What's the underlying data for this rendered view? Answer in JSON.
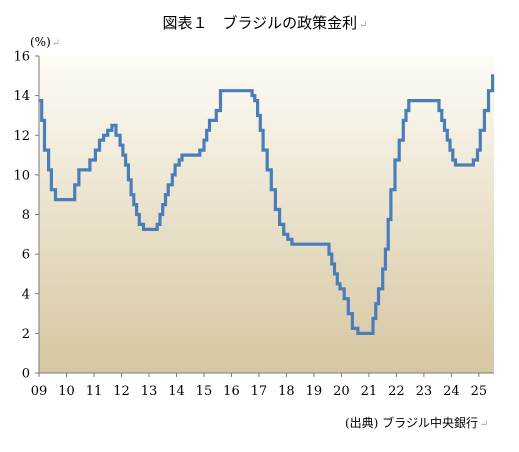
{
  "chart_data": {
    "type": "line",
    "title": "図表１　ブラジルの政策金利",
    "title_mark": "↵",
    "unit_label": "(%)",
    "unit_mark": "↵",
    "source": "(出典) ブラジル中央銀行",
    "source_mark": "↵",
    "xlabel": "",
    "ylabel": "",
    "xlim": [
      2009.0,
      2025.55
    ],
    "ylim": [
      0,
      16
    ],
    "y_ticks": [
      "0",
      "2",
      "4",
      "6",
      "8",
      "10",
      "12",
      "14",
      "16"
    ],
    "x_ticks": [
      "09",
      "10",
      "11",
      "12",
      "13",
      "14",
      "15",
      "16",
      "17",
      "18",
      "19",
      "20",
      "21",
      "22",
      "23",
      "24",
      "25"
    ],
    "x_tick_values": [
      2009,
      2010,
      2011,
      2012,
      2013,
      2014,
      2015,
      2016,
      2017,
      2018,
      2019,
      2020,
      2021,
      2022,
      2023,
      2024,
      2025
    ],
    "grid": false,
    "legend": "none",
    "line_color": "#4a7ebb",
    "background_gradient": [
      "#fdfcf6",
      "#d6c6a0"
    ],
    "series": [
      {
        "name": "",
        "x": [
          2009.0,
          2009.1,
          2009.2,
          2009.35,
          2009.45,
          2009.6,
          2010.3,
          2010.45,
          2010.85,
          2011.05,
          2011.2,
          2011.35,
          2011.5,
          2011.65,
          2011.8,
          2011.95,
          2012.05,
          2012.15,
          2012.25,
          2012.35,
          2012.45,
          2012.55,
          2012.65,
          2012.8,
          2013.3,
          2013.4,
          2013.5,
          2013.6,
          2013.7,
          2013.85,
          2013.95,
          2014.1,
          2014.2,
          2014.3,
          2014.85,
          2015.0,
          2015.1,
          2015.2,
          2015.45,
          2015.6,
          2016.75,
          2016.85,
          2016.95,
          2017.05,
          2017.15,
          2017.3,
          2017.45,
          2017.6,
          2017.75,
          2017.9,
          2018.05,
          2018.2,
          2019.55,
          2019.65,
          2019.75,
          2019.85,
          2019.95,
          2020.1,
          2020.25,
          2020.4,
          2020.6,
          2021.15,
          2021.25,
          2021.35,
          2021.5,
          2021.6,
          2021.7,
          2021.8,
          2021.95,
          2022.1,
          2022.25,
          2022.35,
          2022.45,
          2022.55,
          2022.65,
          2023.55,
          2023.65,
          2023.75,
          2023.85,
          2023.95,
          2024.05,
          2024.15,
          2024.3,
          2024.65,
          2024.8,
          2024.95,
          2025.05,
          2025.2,
          2025.35,
          2025.5
        ],
        "values": [
          13.75,
          12.75,
          11.25,
          10.25,
          9.25,
          8.75,
          9.5,
          10.25,
          10.75,
          11.25,
          11.75,
          12.0,
          12.25,
          12.5,
          12.0,
          11.5,
          11.0,
          10.5,
          9.75,
          9.0,
          8.5,
          8.0,
          7.5,
          7.25,
          7.5,
          8.0,
          8.5,
          9.0,
          9.5,
          10.0,
          10.5,
          10.75,
          11.0,
          11.0,
          11.25,
          11.75,
          12.25,
          12.75,
          13.25,
          14.25,
          14.0,
          13.75,
          13.0,
          12.25,
          11.25,
          10.25,
          9.25,
          8.25,
          7.5,
          7.0,
          6.75,
          6.5,
          6.0,
          5.5,
          5.0,
          4.5,
          4.25,
          3.75,
          3.0,
          2.25,
          2.0,
          2.75,
          3.5,
          4.25,
          5.25,
          6.25,
          7.75,
          9.25,
          10.75,
          11.75,
          12.75,
          13.25,
          13.75,
          13.75,
          13.75,
          13.25,
          12.75,
          12.25,
          11.75,
          11.25,
          10.75,
          10.5,
          10.5,
          10.5,
          10.75,
          11.25,
          12.25,
          13.25,
          14.25,
          15.0
        ]
      }
    ]
  }
}
